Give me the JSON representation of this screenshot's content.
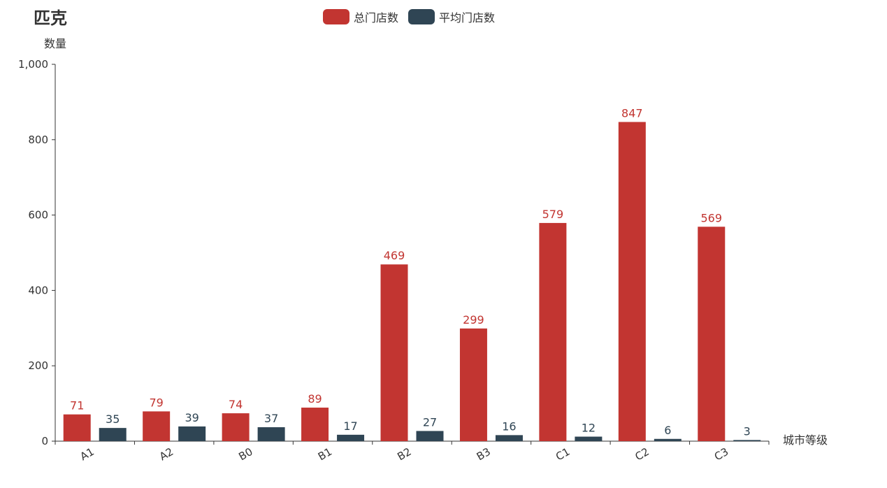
{
  "chart_data": {
    "type": "bar",
    "title": "匹克",
    "xlabel": "城市等级",
    "ylabel": "数量",
    "categories": [
      "A1",
      "A2",
      "B0",
      "B1",
      "B2",
      "B3",
      "C1",
      "C2",
      "C3"
    ],
    "series": [
      {
        "name": "总门店数",
        "color": "#c23531",
        "values": [
          71,
          79,
          74,
          89,
          469,
          299,
          579,
          847,
          569
        ]
      },
      {
        "name": "平均门店数",
        "color": "#2f4554",
        "values": [
          35,
          39,
          37,
          17,
          27,
          16,
          12,
          6,
          3
        ]
      }
    ],
    "ylim": [
      0,
      1000
    ],
    "yticks": [
      0,
      200,
      400,
      600,
      800,
      1000
    ],
    "ytick_labels": [
      "0",
      "200",
      "400",
      "600",
      "800",
      "1,000"
    ],
    "grid": false,
    "legend_position": "top-center",
    "x_tick_rotation": "slanted"
  }
}
